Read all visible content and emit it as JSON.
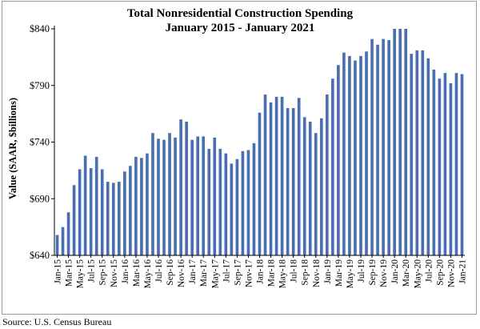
{
  "chart_data": {
    "type": "bar",
    "title": "Total Nonresidential Construction Spending",
    "subtitle": "January 2015 - January 2021",
    "xlabel": "",
    "ylabel": "Value (SAAR, $billions)",
    "ylim": [
      640,
      850
    ],
    "yticks": [
      640,
      690,
      740,
      790,
      840
    ],
    "ytick_labels": [
      "$640",
      "$690",
      "$740",
      "$790",
      "$840"
    ],
    "grid": false,
    "legend": "none",
    "bar_color": "#4a6fb0",
    "categories": [
      "Jan-15",
      "Feb-15",
      "Mar-15",
      "Apr-15",
      "May-15",
      "Jun-15",
      "Jul-15",
      "Aug-15",
      "Sep-15",
      "Oct-15",
      "Nov-15",
      "Dec-15",
      "Jan-16",
      "Feb-16",
      "Mar-16",
      "Apr-16",
      "May-16",
      "Jun-16",
      "Jul-16",
      "Aug-16",
      "Sep-16",
      "Oct-16",
      "Nov-16",
      "Dec-16",
      "Jan-17",
      "Feb-17",
      "Mar-17",
      "Apr-17",
      "May-17",
      "Jun-17",
      "Jul-17",
      "Aug-17",
      "Sep-17",
      "Oct-17",
      "Nov-17",
      "Dec-17",
      "Jan-18",
      "Feb-18",
      "Mar-18",
      "Apr-18",
      "May-18",
      "Jun-18",
      "Jul-18",
      "Aug-18",
      "Sep-18",
      "Oct-18",
      "Nov-18",
      "Dec-18",
      "Jan-19",
      "Feb-19",
      "Mar-19",
      "Apr-19",
      "May-19",
      "Jun-19",
      "Jul-19",
      "Aug-19",
      "Sep-19",
      "Oct-19",
      "Nov-19",
      "Dec-19",
      "Jan-20",
      "Feb-20",
      "Mar-20",
      "Apr-20",
      "May-20",
      "Jun-20",
      "Jul-20",
      "Aug-20",
      "Sep-20",
      "Oct-20",
      "Nov-20",
      "Dec-20",
      "Jan-21"
    ],
    "tick_labels": [
      "Jan-15",
      "Mar-15",
      "May-15",
      "Jul-15",
      "Sep-15",
      "Nov-15",
      "Jan-16",
      "Mar-16",
      "May-16",
      "Jul-16",
      "Sep-16",
      "Nov-16",
      "Jan-17",
      "Mar-17",
      "May-17",
      "Jul-17",
      "Sep-17",
      "Nov-17",
      "Jan-18",
      "Mar-18",
      "May-18",
      "Jul-18",
      "Sep-18",
      "Nov-18",
      "Jan-19",
      "Mar-19",
      "May-19",
      "Jul-19",
      "Sep-19",
      "Nov-19",
      "Jan-20",
      "Mar-20",
      "May-20",
      "Jul-20",
      "Sep-20",
      "Nov-20",
      "Jan-21"
    ],
    "values": [
      658,
      665,
      678,
      702,
      716,
      728,
      717,
      727,
      716,
      705,
      704,
      705,
      714,
      719,
      727,
      726,
      730,
      748,
      743,
      742,
      748,
      744,
      760,
      758,
      742,
      745,
      745,
      734,
      744,
      734,
      730,
      721,
      725,
      732,
      733,
      739,
      766,
      782,
      775,
      780,
      780,
      770,
      770,
      779,
      762,
      758,
      748,
      761,
      782,
      796,
      808,
      819,
      816,
      812,
      816,
      820,
      831,
      826,
      831,
      830,
      840,
      840,
      840,
      818,
      821,
      821,
      814,
      804,
      796,
      801,
      792,
      801,
      800
    ]
  },
  "source_note": "Source:  U.S. Census Bureau"
}
